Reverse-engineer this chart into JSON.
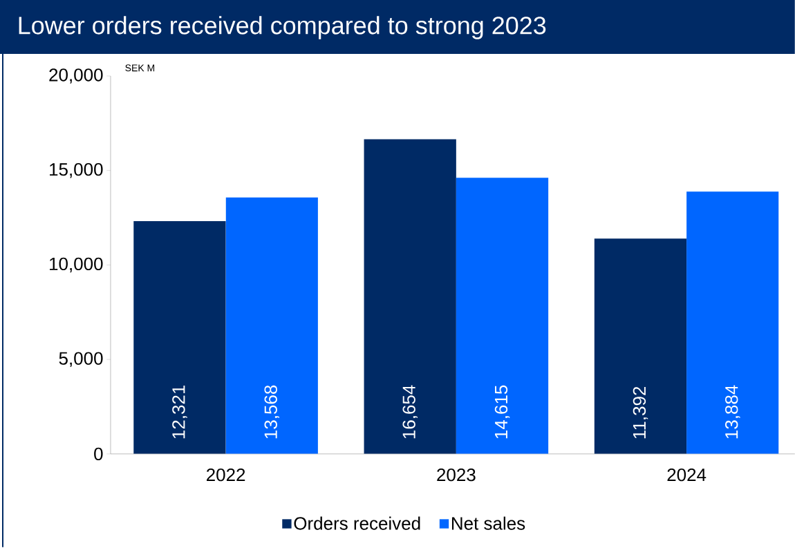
{
  "chart_data": {
    "type": "bar",
    "title": "Lower orders received compared to strong 2023",
    "ylabel": "SEK M",
    "categories": [
      "2022",
      "2023",
      "2024"
    ],
    "series": [
      {
        "name": "Orders received",
        "color": "#002a65",
        "values": [
          12321,
          16654,
          11392
        ],
        "value_labels": [
          "12,321",
          "16,654",
          "11,392"
        ]
      },
      {
        "name": "Net sales",
        "color": "#0066ff",
        "values": [
          13568,
          14615,
          13884
        ],
        "value_labels": [
          "13,568",
          "14,615",
          "13,884"
        ]
      }
    ],
    "ylim": [
      0,
      20000
    ],
    "yticks": [
      {
        "value": 0,
        "label": "0"
      },
      {
        "value": 5000,
        "label": "5,000"
      },
      {
        "value": 10000,
        "label": "10,000"
      },
      {
        "value": 15000,
        "label": "15,000"
      },
      {
        "value": 20000,
        "label": "20,000"
      }
    ],
    "legend": "bottom",
    "grid": false
  }
}
